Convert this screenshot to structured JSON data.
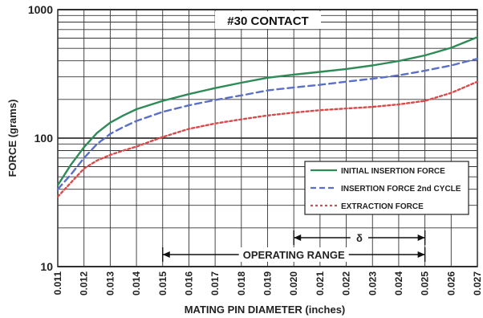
{
  "chart_data": {
    "type": "line",
    "title": "#30 CONTACT",
    "xlabel": "MATING PIN  DIAMETER (inches)",
    "ylabel": "FORCE (grams)",
    "y_scale": "log",
    "ylim": [
      10,
      1000
    ],
    "xlim": [
      0.011,
      0.027
    ],
    "grid": true,
    "legend_position": "lower-right",
    "x_ticks": [
      "0.011",
      "0.012",
      "0.013",
      "0.014",
      "0.015",
      "0.016",
      "0.017",
      "0.018",
      "0.019",
      "0.020",
      "0.021",
      "0.022",
      "0.023",
      "0.024",
      "0.025",
      "0.026",
      "0.027"
    ],
    "y_ticks": [
      "10",
      "100",
      "1000"
    ],
    "series": [
      {
        "name": "INITIAL INSERTION FORCE",
        "color": "#2e8b57",
        "style": "solid",
        "x": [
          0.011,
          0.0115,
          0.012,
          0.0125,
          0.013,
          0.0135,
          0.014,
          0.015,
          0.016,
          0.017,
          0.018,
          0.019,
          0.02,
          0.021,
          0.022,
          0.023,
          0.024,
          0.025,
          0.026,
          0.027
        ],
        "y": [
          43,
          62,
          85,
          110,
          132,
          150,
          168,
          195,
          220,
          245,
          270,
          295,
          312,
          328,
          345,
          368,
          398,
          440,
          505,
          610
        ]
      },
      {
        "name": "INSERTION FORCE 2nd CYCLE",
        "color": "#5a6fc8",
        "style": "dashed",
        "x": [
          0.011,
          0.0115,
          0.012,
          0.0125,
          0.013,
          0.0135,
          0.014,
          0.015,
          0.016,
          0.017,
          0.018,
          0.019,
          0.02,
          0.021,
          0.022,
          0.023,
          0.024,
          0.025,
          0.026,
          0.027
        ],
        "y": [
          40,
          52,
          70,
          90,
          108,
          122,
          136,
          160,
          180,
          198,
          215,
          235,
          248,
          260,
          275,
          290,
          308,
          335,
          368,
          415
        ]
      },
      {
        "name": "EXTRACTION FORCE",
        "color": "#d94a4a",
        "style": "dotted",
        "x": [
          0.011,
          0.0115,
          0.012,
          0.0125,
          0.013,
          0.0135,
          0.014,
          0.015,
          0.016,
          0.017,
          0.018,
          0.019,
          0.02,
          0.021,
          0.022,
          0.023,
          0.024,
          0.025,
          0.026,
          0.027
        ],
        "y": [
          35,
          45,
          58,
          67,
          74,
          80,
          86,
          102,
          118,
          130,
          140,
          150,
          158,
          165,
          170,
          175,
          183,
          195,
          225,
          275
        ]
      }
    ],
    "annotations": [
      {
        "text": "OPERATING RANGE",
        "x_start": 0.015,
        "x_end": 0.025
      },
      {
        "text": "δ",
        "x_start": 0.02,
        "x_end": 0.025
      }
    ]
  }
}
